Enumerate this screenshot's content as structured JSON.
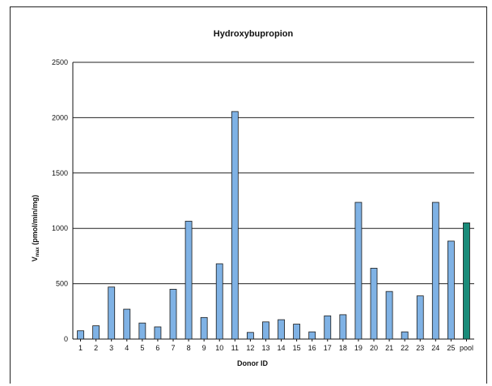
{
  "chart_data": {
    "type": "bar",
    "title": "Hydroxybupropion",
    "xlabel": "Donor ID",
    "ylabel_main": "V",
    "ylabel_sub": "max",
    "ylabel_rest": " (pmol/min/mg)",
    "ylim": [
      0,
      2500
    ],
    "yticks": [
      0,
      500,
      1000,
      1500,
      2000,
      2500
    ],
    "grid": true,
    "categories": [
      "1",
      "2",
      "3",
      "4",
      "5",
      "6",
      "7",
      "8",
      "9",
      "10",
      "11",
      "12",
      "13",
      "14",
      "15",
      "16",
      "17",
      "18",
      "19",
      "20",
      "21",
      "22",
      "23",
      "24",
      "25",
      "pool"
    ],
    "values": [
      75,
      120,
      470,
      270,
      145,
      110,
      450,
      1065,
      195,
      680,
      2055,
      60,
      155,
      175,
      135,
      65,
      210,
      220,
      1235,
      640,
      430,
      65,
      390,
      1235,
      885,
      1050
    ],
    "colors": {
      "bar": "#7fb2e5",
      "pool": "#1a8c7a",
      "outline": "#1a1a1a",
      "grid": "#222222"
    }
  }
}
